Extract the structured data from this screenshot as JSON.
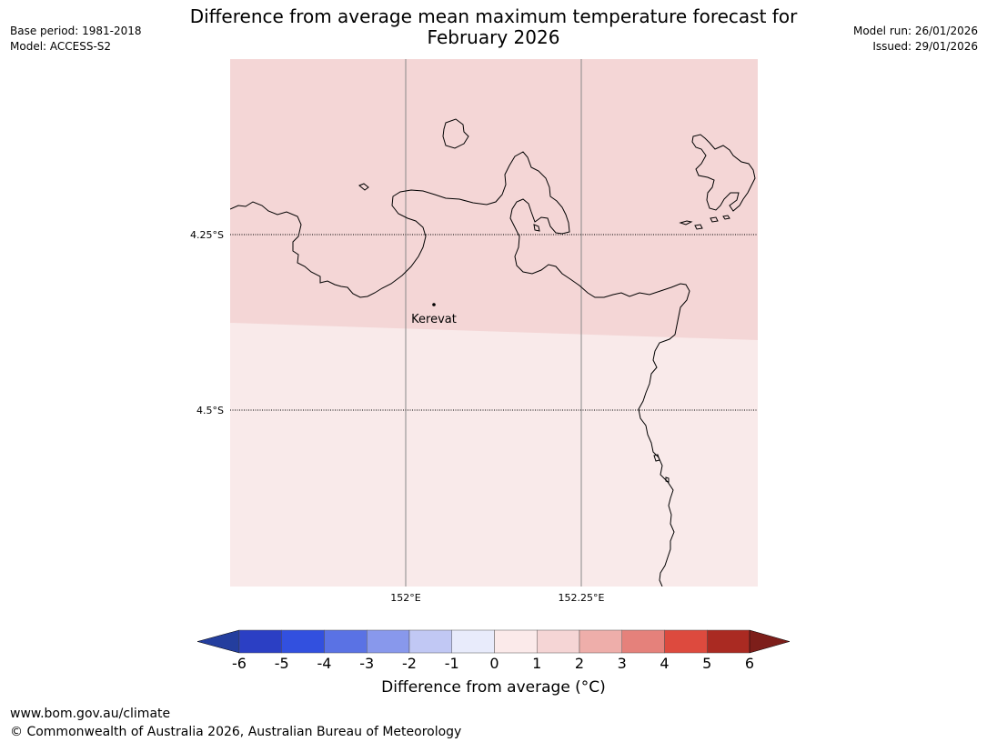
{
  "title": {
    "line1": "Difference from average mean maximum temperature forecast for",
    "line2": "February 2026"
  },
  "meta_left": {
    "base_period": "Base period: 1981-2018",
    "model": "Model: ACCESS-S2"
  },
  "meta_right": {
    "model_run": "Model run: 26/01/2026",
    "issued": "Issued: 29/01/2026"
  },
  "map": {
    "lat_labels": [
      "4.25°S",
      "4.5°S"
    ],
    "lon_labels": [
      "152°E",
      "152.25°E"
    ],
    "place": "Kerevat",
    "region_colors": {
      "north_zone": "#f4d6d6",
      "south_zone": "#f9eaea",
      "coastline": "#000000",
      "meridian": "#888888"
    },
    "zone_values": {
      "north": "1 to 2",
      "south": "0 to 1"
    }
  },
  "colorbar": {
    "title": "Difference from average ($^\\circ$C)",
    "title_text": "Difference from average (°C)",
    "ticks": [
      "-6",
      "-5",
      "-4",
      "-3",
      "-2",
      "-1",
      "0",
      "1",
      "2",
      "3",
      "4",
      "5",
      "6"
    ],
    "colors": [
      "#243e9e",
      "#2b3fc4",
      "#3250df",
      "#5a72e4",
      "#8898ec",
      "#c1c8f4",
      "#e8ebfb",
      "#fbeaea",
      "#f5d5d5",
      "#eeaeaa",
      "#e5817b",
      "#dd4a3e",
      "#aa2a22",
      "#7d1e1a"
    ]
  },
  "footer": {
    "url": "www.bom.gov.au/climate",
    "copyright": "© Commonwealth of Australia 2026, Australian Bureau of Meteorology"
  }
}
